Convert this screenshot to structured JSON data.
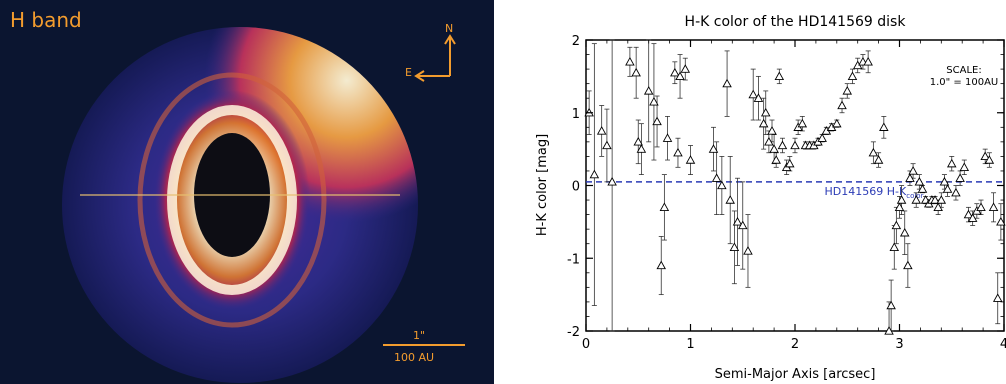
{
  "image_panel": {
    "band_label": "H band",
    "north_label": "N",
    "east_label": "E",
    "scale_arcsec": "1\"",
    "scale_au": "100 AU",
    "colors": {
      "label": "#f39c2e",
      "background": "#0b1530",
      "disk_inner": "#ffffff",
      "disk_outer": "#3b2d9a"
    }
  },
  "chart_data": {
    "type": "scatter",
    "title": "H-K color of the HD141569 disk",
    "xlabel": "Semi-Major Axis [arcsec]",
    "ylabel": "H-K color [mag]",
    "xlim": [
      0,
      4
    ],
    "ylim": [
      -2,
      2
    ],
    "xticks": [
      "0",
      "1",
      "2",
      "3",
      "4"
    ],
    "yticks": [
      "-2",
      "-1",
      "0",
      "1",
      "2"
    ],
    "grid": false,
    "marker": "open-triangle",
    "reference_line": {
      "y": 0.05,
      "label": "HD141569 H-K",
      "label_subscript": "color",
      "color": "#2b3bb5",
      "style": "dashed"
    },
    "annotation": {
      "line1": "SCALE:",
      "line2": "1.0\" = 100AU"
    },
    "points": [
      {
        "x": 0.03,
        "y": 1.0,
        "err": 0.3
      },
      {
        "x": 0.08,
        "y": 0.15,
        "err": 1.8
      },
      {
        "x": 0.15,
        "y": 0.75,
        "err": 0.35
      },
      {
        "x": 0.2,
        "y": 0.55,
        "err": 0.5
      },
      {
        "x": 0.25,
        "y": 0.05,
        "err": 2.3
      },
      {
        "x": 0.42,
        "y": 1.7,
        "err": 0.2
      },
      {
        "x": 0.48,
        "y": 1.55,
        "err": 0.35
      },
      {
        "x": 0.5,
        "y": 0.6,
        "err": 0.3
      },
      {
        "x": 0.53,
        "y": 0.5,
        "err": 0.35
      },
      {
        "x": 0.6,
        "y": 1.3,
        "err": 0.7
      },
      {
        "x": 0.65,
        "y": 1.15,
        "err": 0.8
      },
      {
        "x": 0.68,
        "y": 0.88,
        "err": 0.35
      },
      {
        "x": 0.72,
        "y": -1.1,
        "err": 0.4
      },
      {
        "x": 0.75,
        "y": -0.3,
        "err": 0.45
      },
      {
        "x": 0.78,
        "y": 0.65,
        "err": 0.3
      },
      {
        "x": 0.85,
        "y": 1.55,
        "err": 0.15
      },
      {
        "x": 0.88,
        "y": 0.45,
        "err": 0.2
      },
      {
        "x": 0.9,
        "y": 1.5,
        "err": 0.3
      },
      {
        "x": 0.95,
        "y": 1.6,
        "err": 0.15
      },
      {
        "x": 1.0,
        "y": 0.35,
        "err": 0.2
      },
      {
        "x": 1.22,
        "y": 0.5,
        "err": 0.3
      },
      {
        "x": 1.25,
        "y": 0.1,
        "err": 0.5
      },
      {
        "x": 1.3,
        "y": 0.0,
        "err": 0.4
      },
      {
        "x": 1.35,
        "y": 1.4,
        "err": 0.45
      },
      {
        "x": 1.38,
        "y": -0.2,
        "err": 0.6
      },
      {
        "x": 1.42,
        "y": -0.85,
        "err": 0.5
      },
      {
        "x": 1.45,
        "y": -0.5,
        "err": 0.6
      },
      {
        "x": 1.5,
        "y": -0.55,
        "err": 0.6
      },
      {
        "x": 1.55,
        "y": -0.9,
        "err": 0.5
      },
      {
        "x": 1.6,
        "y": 1.25,
        "err": 0.35
      },
      {
        "x": 1.65,
        "y": 1.2,
        "err": 0.3
      },
      {
        "x": 1.7,
        "y": 0.85,
        "err": 0.35
      },
      {
        "x": 1.72,
        "y": 1.0,
        "err": 0.3
      },
      {
        "x": 1.75,
        "y": 0.6,
        "err": 0.15
      },
      {
        "x": 1.78,
        "y": 0.75,
        "err": 0.15
      },
      {
        "x": 1.8,
        "y": 0.5,
        "err": 0.2
      },
      {
        "x": 1.82,
        "y": 0.35,
        "err": 0.1
      },
      {
        "x": 1.85,
        "y": 1.5,
        "err": 0.1
      },
      {
        "x": 1.88,
        "y": 0.55,
        "err": 0.1
      },
      {
        "x": 1.92,
        "y": 0.25,
        "err": 0.1
      },
      {
        "x": 1.95,
        "y": 0.3,
        "err": 0.1
      },
      {
        "x": 2.0,
        "y": 0.55,
        "err": 0.1
      },
      {
        "x": 2.03,
        "y": 0.8,
        "err": 0.1
      },
      {
        "x": 2.07,
        "y": 0.85,
        "err": 0.1
      },
      {
        "x": 2.1,
        "y": 0.55,
        "err": 0.05
      },
      {
        "x": 2.14,
        "y": 0.55,
        "err": 0.05
      },
      {
        "x": 2.18,
        "y": 0.55,
        "err": 0.05
      },
      {
        "x": 2.22,
        "y": 0.6,
        "err": 0.05
      },
      {
        "x": 2.26,
        "y": 0.65,
        "err": 0.05
      },
      {
        "x": 2.3,
        "y": 0.75,
        "err": 0.05
      },
      {
        "x": 2.35,
        "y": 0.8,
        "err": 0.05
      },
      {
        "x": 2.4,
        "y": 0.85,
        "err": 0.05
      },
      {
        "x": 2.45,
        "y": 1.1,
        "err": 0.1
      },
      {
        "x": 2.5,
        "y": 1.3,
        "err": 0.1
      },
      {
        "x": 2.55,
        "y": 1.5,
        "err": 0.1
      },
      {
        "x": 2.6,
        "y": 1.65,
        "err": 0.1
      },
      {
        "x": 2.65,
        "y": 1.7,
        "err": 0.1
      },
      {
        "x": 2.7,
        "y": 1.7,
        "err": 0.15
      },
      {
        "x": 2.75,
        "y": 0.45,
        "err": 0.15
      },
      {
        "x": 2.8,
        "y": 0.35,
        "err": 0.1
      },
      {
        "x": 2.85,
        "y": 0.8,
        "err": 0.15
      },
      {
        "x": 2.9,
        "y": -2.0,
        "err": 0.4
      },
      {
        "x": 2.92,
        "y": -1.65,
        "err": 0.35
      },
      {
        "x": 2.95,
        "y": -0.85,
        "err": 0.3
      },
      {
        "x": 2.97,
        "y": -0.55,
        "err": 0.25
      },
      {
        "x": 3.0,
        "y": -0.3,
        "err": 0.15
      },
      {
        "x": 3.02,
        "y": -0.2,
        "err": 0.2
      },
      {
        "x": 3.05,
        "y": -0.65,
        "err": 0.3
      },
      {
        "x": 3.08,
        "y": -1.1,
        "err": 0.3
      },
      {
        "x": 3.1,
        "y": 0.1,
        "err": 0.1
      },
      {
        "x": 3.13,
        "y": 0.2,
        "err": 0.1
      },
      {
        "x": 3.16,
        "y": -0.2,
        "err": 0.1
      },
      {
        "x": 3.19,
        "y": 0.05,
        "err": 0.1
      },
      {
        "x": 3.22,
        "y": -0.05,
        "err": 0.05
      },
      {
        "x": 3.25,
        "y": -0.2,
        "err": 0.05
      },
      {
        "x": 3.28,
        "y": -0.25,
        "err": 0.05
      },
      {
        "x": 3.31,
        "y": -0.2,
        "err": 0.05
      },
      {
        "x": 3.34,
        "y": -0.2,
        "err": 0.05
      },
      {
        "x": 3.37,
        "y": -0.3,
        "err": 0.1
      },
      {
        "x": 3.4,
        "y": -0.2,
        "err": 0.1
      },
      {
        "x": 3.43,
        "y": 0.05,
        "err": 0.1
      },
      {
        "x": 3.46,
        "y": -0.05,
        "err": 0.1
      },
      {
        "x": 3.5,
        "y": 0.3,
        "err": 0.1
      },
      {
        "x": 3.54,
        "y": -0.1,
        "err": 0.1
      },
      {
        "x": 3.58,
        "y": 0.1,
        "err": 0.1
      },
      {
        "x": 3.62,
        "y": 0.25,
        "err": 0.1
      },
      {
        "x": 3.66,
        "y": -0.4,
        "err": 0.1
      },
      {
        "x": 3.7,
        "y": -0.45,
        "err": 0.1
      },
      {
        "x": 3.74,
        "y": -0.35,
        "err": 0.1
      },
      {
        "x": 3.78,
        "y": -0.3,
        "err": 0.1
      },
      {
        "x": 3.82,
        "y": 0.4,
        "err": 0.1
      },
      {
        "x": 3.86,
        "y": 0.35,
        "err": 0.1
      },
      {
        "x": 3.9,
        "y": -0.3,
        "err": 0.2
      },
      {
        "x": 3.94,
        "y": -1.55,
        "err": 0.35
      },
      {
        "x": 3.97,
        "y": -0.5,
        "err": 0.25
      }
    ]
  }
}
